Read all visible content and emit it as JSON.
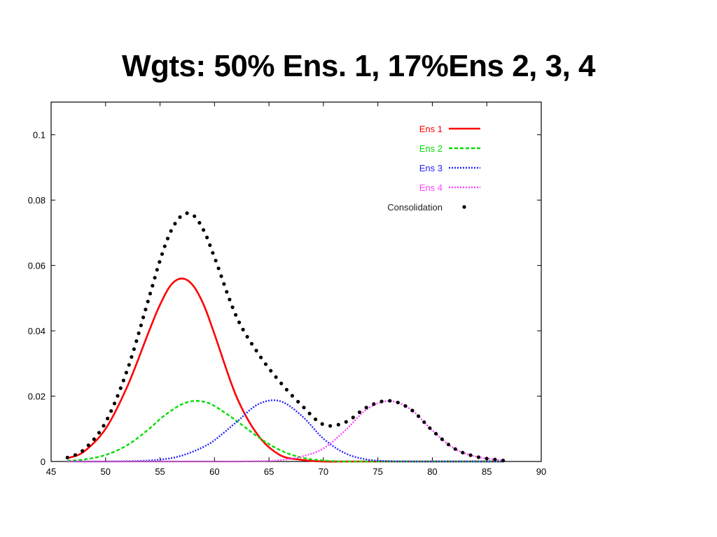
{
  "slide": {
    "title": "Wgts: 50% Ens. 1, 17%Ens 2, 3, 4"
  },
  "chart_data": {
    "type": "line",
    "title": "",
    "xlabel": "",
    "ylabel": "",
    "xlim": [
      45,
      90
    ],
    "ylim": [
      0,
      0.11
    ],
    "x_ticks": [
      "45",
      "50",
      "55",
      "60",
      "65",
      "70",
      "75",
      "80",
      "85",
      "90"
    ],
    "y_ticks": [
      "0",
      "0.02",
      "0.04",
      "0.06",
      "0.08",
      "0.1"
    ],
    "grid": false,
    "legend_position": "top-right",
    "x": [
      46.5,
      48,
      50,
      52,
      54,
      55,
      56,
      57,
      58,
      59,
      60,
      62,
      64,
      66,
      68,
      70,
      72,
      74,
      76,
      78,
      80,
      82,
      84,
      86.5
    ],
    "series": [
      {
        "name": "Ens 1",
        "color": "#ff0000",
        "style": "solid",
        "values": [
          0.001,
          0.003,
          0.01,
          0.023,
          0.04,
          0.048,
          0.054,
          0.056,
          0.054,
          0.048,
          0.039,
          0.02,
          0.008,
          0.002,
          0.0005,
          0.0,
          0.0,
          0.0,
          0.0,
          0.0,
          0.0,
          0.0,
          0.0,
          0.0
        ]
      },
      {
        "name": "Ens 2",
        "color": "#00dd00",
        "style": "dashed",
        "values": [
          0.0002,
          0.0006,
          0.002,
          0.005,
          0.01,
          0.013,
          0.0155,
          0.0175,
          0.0185,
          0.0183,
          0.017,
          0.0125,
          0.0075,
          0.0035,
          0.0012,
          0.0003,
          0.0,
          0.0,
          0.0,
          0.0,
          0.0,
          0.0,
          0.0,
          0.0
        ]
      },
      {
        "name": "Ens 3",
        "color": "#2222ff",
        "style": "dotted",
        "values": [
          0.0,
          0.0,
          0.0,
          0.0001,
          0.0003,
          0.0006,
          0.001,
          0.0018,
          0.003,
          0.0045,
          0.0065,
          0.012,
          0.0175,
          0.0185,
          0.014,
          0.007,
          0.0025,
          0.0006,
          0.0001,
          0.0,
          0.0,
          0.0,
          0.0,
          0.0
        ]
      },
      {
        "name": "Ens 4",
        "color": "#ff44ff",
        "style": "dotted",
        "values": [
          0.0,
          0.0,
          0.0,
          0.0,
          0.0,
          0.0,
          0.0,
          0.0,
          0.0,
          0.0,
          0.0,
          0.0,
          0.0001,
          0.0004,
          0.0015,
          0.004,
          0.0095,
          0.016,
          0.0185,
          0.016,
          0.0095,
          0.004,
          0.0015,
          0.0003
        ]
      },
      {
        "name": "Consolidation",
        "color": "#000000",
        "style": "points",
        "values": [
          0.0012,
          0.0036,
          0.012,
          0.0281,
          0.0503,
          0.0616,
          0.0705,
          0.0753,
          0.0755,
          0.0708,
          0.0625,
          0.0445,
          0.0331,
          0.0244,
          0.0172,
          0.0113,
          0.012,
          0.0166,
          0.0186,
          0.016,
          0.0095,
          0.004,
          0.0015,
          0.0003
        ]
      }
    ]
  }
}
